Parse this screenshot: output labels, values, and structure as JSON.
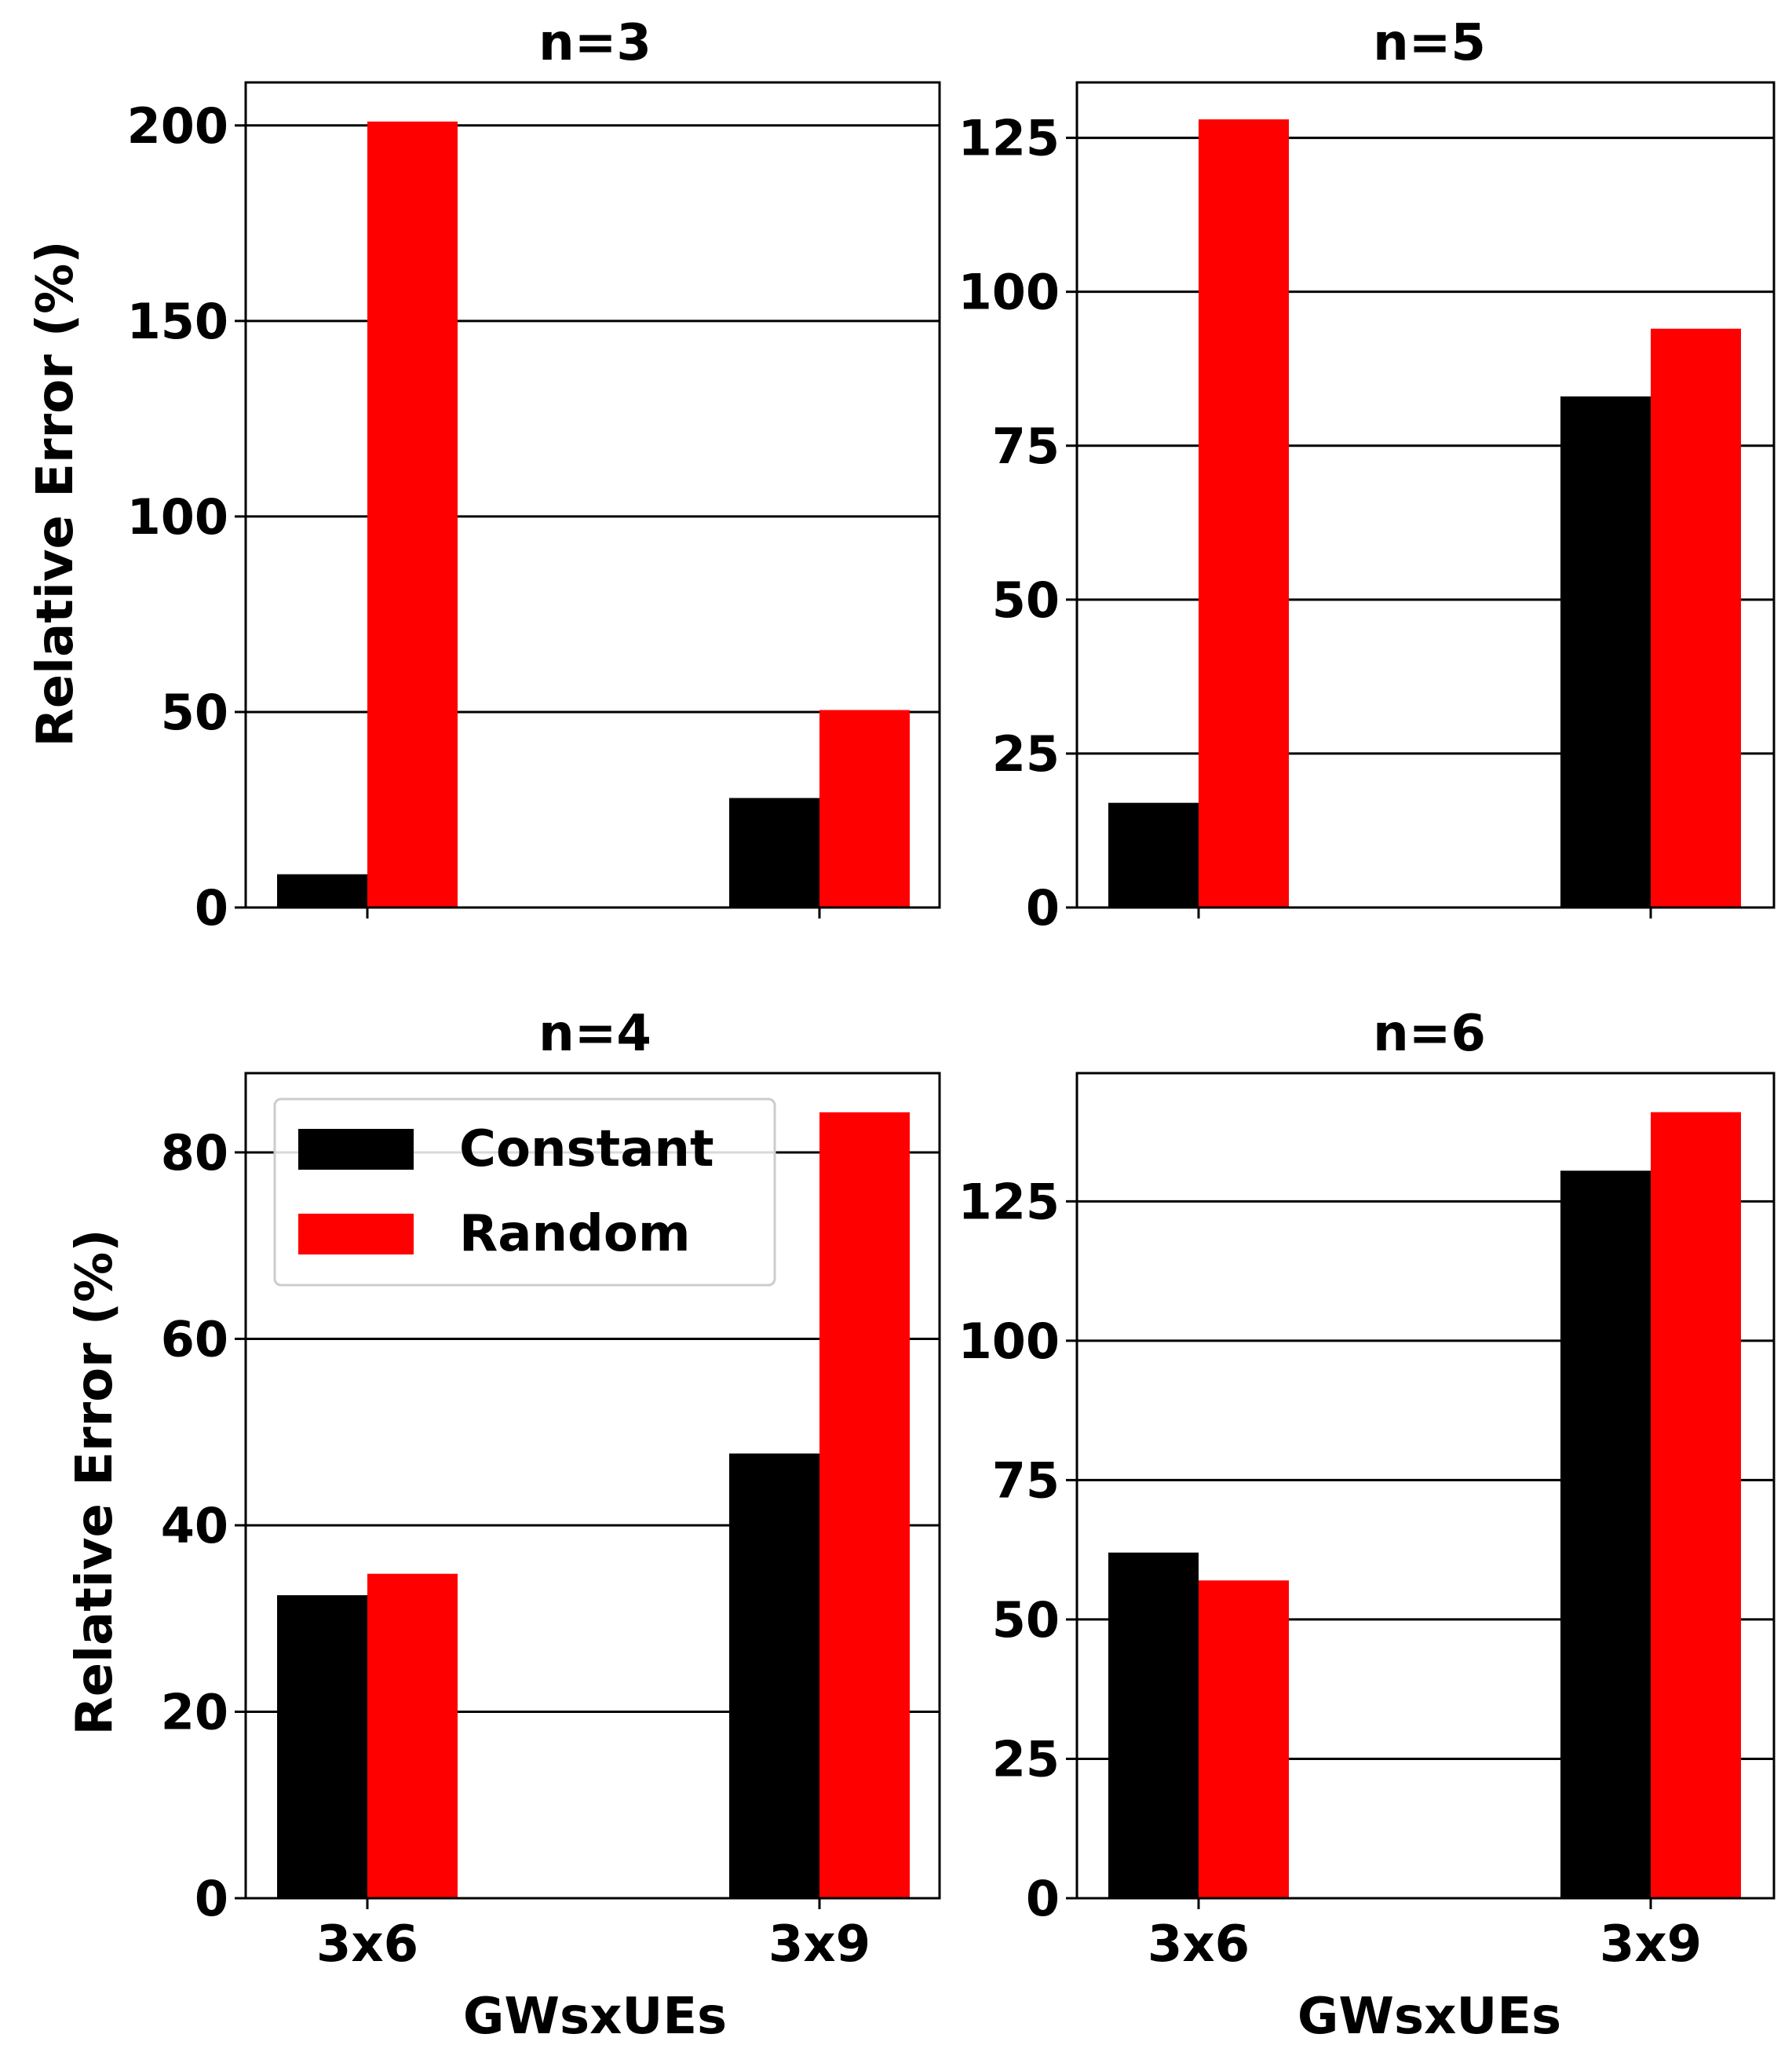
{
  "chart_data": [
    {
      "type": "bar",
      "title": "n=3",
      "categories": [
        "3x6",
        "3x9"
      ],
      "series": [
        {
          "name": "Constant",
          "values": [
            8.5,
            28.0
          ]
        },
        {
          "name": "Random",
          "values": [
            201.0,
            50.5
          ]
        }
      ],
      "ylim": [
        0,
        211
      ],
      "yticks": [
        0,
        50,
        100,
        150,
        200
      ],
      "ylabel": "Relative Error (%)",
      "xlabel": "",
      "show_xticklabels": false,
      "grid": "y"
    },
    {
      "type": "bar",
      "title": "n=5",
      "categories": [
        "3x6",
        "3x9"
      ],
      "series": [
        {
          "name": "Constant",
          "values": [
            17.0,
            83.0
          ]
        },
        {
          "name": "Random",
          "values": [
            128.0,
            94.0
          ]
        }
      ],
      "ylim": [
        0,
        134
      ],
      "yticks": [
        0,
        25,
        50,
        75,
        100,
        125
      ],
      "ylabel": "",
      "xlabel": "",
      "show_xticklabels": false,
      "grid": "y"
    },
    {
      "type": "bar",
      "title": "n=4",
      "categories": [
        "3x6",
        "3x9"
      ],
      "series": [
        {
          "name": "Constant",
          "values": [
            32.5,
            47.7
          ]
        },
        {
          "name": "Random",
          "values": [
            34.8,
            84.3
          ]
        }
      ],
      "ylim": [
        0,
        88.5
      ],
      "yticks": [
        0,
        20,
        40,
        60,
        80
      ],
      "ylabel": "Relative Error (%)",
      "xlabel": "GWsxUEs",
      "show_xticklabels": true,
      "grid": "y",
      "legend": {
        "position": "top-left",
        "entries": [
          "Constant",
          "Random"
        ]
      }
    },
    {
      "type": "bar",
      "title": "n=6",
      "categories": [
        "3x6",
        "3x9"
      ],
      "series": [
        {
          "name": "Constant",
          "values": [
            62.0,
            130.5
          ]
        },
        {
          "name": "Random",
          "values": [
            57.0,
            141.0
          ]
        }
      ],
      "ylim": [
        0,
        148
      ],
      "yticks": [
        0,
        25,
        50,
        75,
        100,
        125
      ],
      "ylabel": "",
      "xlabel": "GWsxUEs",
      "show_xticklabels": true,
      "grid": "y"
    }
  ],
  "colors": {
    "Constant": "#000000",
    "Random": "#ff0000",
    "grid": "#000000",
    "axes": "#000000"
  }
}
